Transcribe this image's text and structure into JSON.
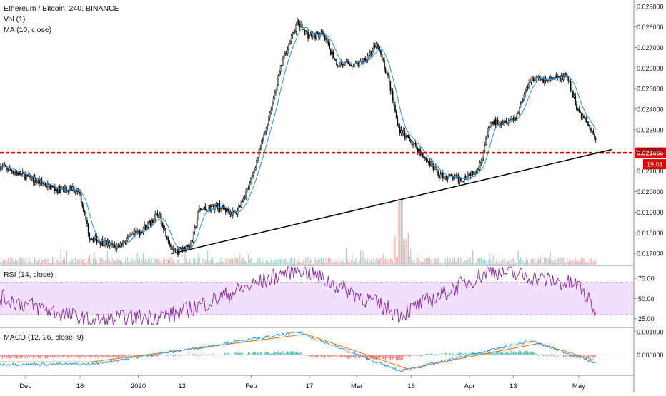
{
  "header": {
    "symbol_line": "Ethereum / Bitcoin, 240, BINANCE",
    "indicator_vol": "Vol (1)",
    "indicator_ma": "MA (10, close)",
    "rsi_label": "RSI (14, close)",
    "macd_label": "MACD (12, 26, close, 9)"
  },
  "colors": {
    "up": "#26a69a",
    "down": "#ef5350",
    "candle": "#000000",
    "ma": "#2196f3",
    "level_line": "#e00000",
    "trendline": "#000000",
    "rsi_line": "#8e24aa",
    "rsi_band": "#f0e0fb",
    "macd_line": "#2196f3",
    "signal_line": "#ff6d00"
  },
  "price_badge": {
    "price": "0.021886",
    "countdown": "19:01"
  },
  "chart_data": [
    {
      "type": "line",
      "title": "Ethereum / Bitcoin, 240, BINANCE",
      "style": "candlestick",
      "x_ticks": [
        "Dec",
        "16",
        "2020",
        "13",
        "Feb",
        "17",
        "Mar",
        "16",
        "Apr",
        "13",
        "May"
      ],
      "y_ticks": [
        "0.017000",
        "0.018000",
        "0.019000",
        "0.020000",
        "0.021000",
        "0.022000",
        "0.023000",
        "0.024000",
        "0.025000",
        "0.026000",
        "0.027000",
        "0.028000",
        "0.029000"
      ],
      "ylim": [
        0.01645,
        0.0292
      ],
      "key_points": [
        {
          "x": "Nov 25",
          "y": 0.0212
        },
        {
          "x": "Dec 2",
          "y": 0.0207
        },
        {
          "x": "Dec 10",
          "y": 0.0201
        },
        {
          "x": "Dec 16",
          "y": 0.0201
        },
        {
          "x": "Dec 19",
          "y": 0.0178
        },
        {
          "x": "Dec 26",
          "y": 0.0173
        },
        {
          "x": "Jan 2",
          "y": 0.0181
        },
        {
          "x": "Jan 7",
          "y": 0.0189
        },
        {
          "x": "Jan 11",
          "y": 0.017
        },
        {
          "x": "Jan 16",
          "y": 0.0175
        },
        {
          "x": "Jan 18",
          "y": 0.0191
        },
        {
          "x": "Jan 23",
          "y": 0.0193
        },
        {
          "x": "Jan 28",
          "y": 0.0189
        },
        {
          "x": "Feb 1",
          "y": 0.0204
        },
        {
          "x": "Feb 5",
          "y": 0.0228
        },
        {
          "x": "Feb 10",
          "y": 0.0264
        },
        {
          "x": "Feb 14",
          "y": 0.0282
        },
        {
          "x": "Feb 17",
          "y": 0.0276
        },
        {
          "x": "Feb 21",
          "y": 0.0276
        },
        {
          "x": "Feb 25",
          "y": 0.0262
        },
        {
          "x": "Mar 2",
          "y": 0.0262
        },
        {
          "x": "Mar 7",
          "y": 0.0271
        },
        {
          "x": "Mar 10",
          "y": 0.0255
        },
        {
          "x": "Mar 13",
          "y": 0.023
        },
        {
          "x": "Mar 18",
          "y": 0.0221
        },
        {
          "x": "Mar 24",
          "y": 0.0208
        },
        {
          "x": "Mar 30",
          "y": 0.0206
        },
        {
          "x": "Apr 4",
          "y": 0.0212
        },
        {
          "x": "Apr 7",
          "y": 0.0233
        },
        {
          "x": "Apr 14",
          "y": 0.0236
        },
        {
          "x": "Apr 18",
          "y": 0.0255
        },
        {
          "x": "Apr 23",
          "y": 0.0254
        },
        {
          "x": "Apr 28",
          "y": 0.0256
        },
        {
          "x": "May 1",
          "y": 0.024
        },
        {
          "x": "May 5",
          "y": 0.023
        },
        {
          "x": "May 7",
          "y": 0.02189
        }
      ],
      "horizontal_level": 0.021886,
      "trendline": {
        "from": {
          "x": "Jan 10",
          "y": 0.01698
        },
        "to": {
          "x": "May 10",
          "y": 0.02204
        }
      }
    },
    {
      "type": "bar",
      "title": "Vol (1)",
      "values_estimated": "many small bars; spike near Mar 13"
    },
    {
      "type": "line",
      "title": "RSI (14, close)",
      "y_ticks": [
        "25.00",
        "50.00",
        "75.00"
      ],
      "ylim": [
        15,
        90
      ],
      "band": [
        30,
        70
      ],
      "key_points": [
        {
          "x": "Nov 25",
          "y": 50
        },
        {
          "x": "Dec 19",
          "y": 22
        },
        {
          "x": "Jan 11",
          "y": 30
        },
        {
          "x": "Feb 14",
          "y": 88
        },
        {
          "x": "Mar 13",
          "y": 30
        },
        {
          "x": "Apr 7",
          "y": 85
        },
        {
          "x": "May 1",
          "y": 66
        },
        {
          "x": "May 7",
          "y": 24
        }
      ]
    },
    {
      "type": "line",
      "title": "MACD (12, 26, close, 9)",
      "y_ticks": [
        "0.001000",
        "0.000000"
      ],
      "series": [
        {
          "name": "MACD",
          "key_points": [
            {
              "x": "Dec 19",
              "y": -0.0004
            },
            {
              "x": "Feb 14",
              "y": 0.00098
            },
            {
              "x": "Mar 13",
              "y": -0.0007
            },
            {
              "x": "Apr 18",
              "y": 0.0006
            },
            {
              "x": "May 7",
              "y": -0.0004
            }
          ]
        },
        {
          "name": "Signal",
          "key_points": [
            {
              "x": "Dec 19",
              "y": -0.0003
            },
            {
              "x": "Feb 16",
              "y": 0.0009
            },
            {
              "x": "Mar 15",
              "y": -0.0006
            },
            {
              "x": "Apr 20",
              "y": 0.0005
            },
            {
              "x": "May 7",
              "y": -0.0003
            }
          ]
        }
      ]
    }
  ]
}
